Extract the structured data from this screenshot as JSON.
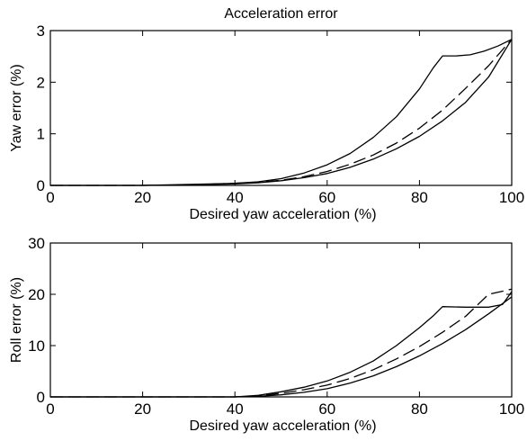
{
  "chart_data": [
    {
      "type": "line",
      "title": "Acceleration error",
      "xlabel": "Desired yaw acceleration (%)",
      "ylabel": "Yaw error  (%)",
      "xlim": [
        0,
        100
      ],
      "ylim": [
        0,
        3
      ],
      "xticks": [
        0,
        20,
        40,
        60,
        80,
        100
      ],
      "yticks": [
        0,
        1,
        2,
        3
      ],
      "grid": false,
      "series": [
        {
          "style": "solid",
          "x": [
            0,
            20,
            30,
            40,
            45,
            50,
            55,
            60,
            65,
            70,
            75,
            80,
            83,
            85,
            88,
            91,
            94,
            97,
            100
          ],
          "y": [
            0,
            0,
            0.02,
            0.04,
            0.07,
            0.13,
            0.24,
            0.4,
            0.62,
            0.93,
            1.33,
            1.87,
            2.28,
            2.51,
            2.51,
            2.53,
            2.6,
            2.7,
            2.83
          ]
        },
        {
          "style": "dashed",
          "x": [
            0,
            20,
            30,
            40,
            45,
            50,
            55,
            60,
            65,
            70,
            75,
            80,
            85,
            90,
            95,
            100
          ],
          "y": [
            0,
            0,
            0.01,
            0.04,
            0.06,
            0.1,
            0.17,
            0.27,
            0.41,
            0.59,
            0.82,
            1.11,
            1.46,
            1.88,
            2.32,
            2.83
          ]
        },
        {
          "style": "solid",
          "x": [
            0,
            20,
            30,
            40,
            45,
            50,
            55,
            60,
            65,
            70,
            75,
            80,
            85,
            90,
            95,
            100
          ],
          "y": [
            0,
            0,
            0.01,
            0.03,
            0.05,
            0.09,
            0.15,
            0.23,
            0.35,
            0.51,
            0.71,
            0.95,
            1.25,
            1.61,
            2.1,
            2.83
          ]
        }
      ]
    },
    {
      "type": "line",
      "title": "",
      "xlabel": "Desired yaw acceleration (%)",
      "ylabel": "Roll error (%)",
      "xlim": [
        0,
        100
      ],
      "ylim": [
        0,
        30
      ],
      "xticks": [
        0,
        20,
        40,
        60,
        80,
        100
      ],
      "yticks": [
        0,
        10,
        20,
        30
      ],
      "grid": false,
      "series": [
        {
          "style": "solid",
          "x": [
            0,
            20,
            40,
            45,
            50,
            55,
            60,
            65,
            70,
            75,
            80,
            83,
            85,
            90,
            95,
            98,
            100
          ],
          "y": [
            0,
            0,
            0,
            0.3,
            1.0,
            1.9,
            3.1,
            4.8,
            7.0,
            10.0,
            13.5,
            15.8,
            17.6,
            17.5,
            17.5,
            18.0,
            20.5
          ]
        },
        {
          "style": "dashed",
          "x": [
            0,
            20,
            40,
            45,
            50,
            55,
            60,
            65,
            70,
            75,
            80,
            85,
            90,
            95,
            100
          ],
          "y": [
            0,
            0,
            0,
            0.2,
            0.7,
            1.4,
            2.3,
            3.6,
            5.3,
            7.4,
            9.8,
            12.6,
            15.7,
            20.0,
            21.0
          ]
        },
        {
          "style": "solid",
          "x": [
            0,
            20,
            40,
            45,
            50,
            55,
            60,
            65,
            70,
            75,
            80,
            85,
            90,
            95,
            100
          ],
          "y": [
            0,
            0,
            0,
            0.1,
            0.4,
            0.9,
            1.6,
            2.7,
            4.1,
            5.9,
            8.0,
            10.4,
            13.1,
            16.2,
            19.5
          ]
        }
      ]
    }
  ]
}
